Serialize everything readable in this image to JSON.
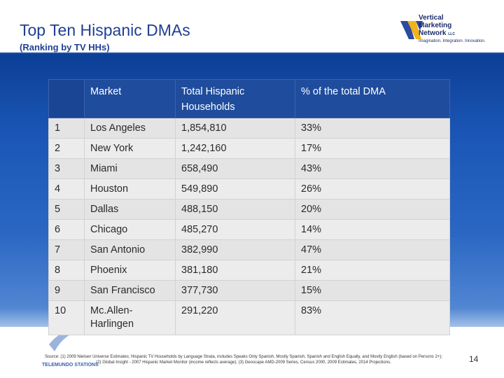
{
  "slide": {
    "title": "Top Ten Hispanic DMAs",
    "subtitle": "(Ranking by TV HHs)",
    "page_number": "14"
  },
  "logo": {
    "line1": "Vertical",
    "line2": "Marketing",
    "line3": "Network",
    "suffix": "LLC",
    "tagline": "Imagination. Integration. Innovation."
  },
  "table": {
    "headers": [
      "",
      "Market",
      "Total Hispanic Households",
      "% of the total DMA"
    ],
    "rows": [
      {
        "rank": "1",
        "market": "Los Angeles",
        "households": "1,854,810",
        "pct": "33%"
      },
      {
        "rank": "2",
        "market": "New York",
        "households": "1,242,160",
        "pct": "17%"
      },
      {
        "rank": "3",
        "market": "Miami",
        "households": "658,490",
        "pct": "43%"
      },
      {
        "rank": "4",
        "market": "Houston",
        "households": "549,890",
        "pct": "26%"
      },
      {
        "rank": "5",
        "market": "Dallas",
        "households": "488,150",
        "pct": "20%"
      },
      {
        "rank": "6",
        "market": "Chicago",
        "households": "485,270",
        "pct": "14%"
      },
      {
        "rank": "7",
        "market": "San Antonio",
        "households": "382,990",
        "pct": "47%"
      },
      {
        "rank": "8",
        "market": "Phoenix",
        "households": "381,180",
        "pct": "21%"
      },
      {
        "rank": "9",
        "market": "San Francisco",
        "households": "377,730",
        "pct": "15%"
      },
      {
        "rank": "10",
        "market": "Mc.Allen-Harlingen",
        "households": "291,220",
        "pct": "83%"
      }
    ]
  },
  "footer": {
    "source_line1": "Source: (1) 2009 Nielsen Universe Estimates; Hispanic TV Households by Language Strata, includes Speaks Only Spanish, Mostly Spanish, Spanish and English Equally, and Mostly English (based on Persons 2+);",
    "source_line2": "(2) Global Insight - 2007 Hispanic Market Monitor (income reflects average); (3) Geoscape AMD-2009 Series, Census 2000, 2009 Estimates, 2014 Projections.",
    "brand": "TELEMUNDO STATIONS"
  },
  "colors": {
    "title": "#1f3f93",
    "header_bg": "#1f4c9c",
    "band": "#1b56b6",
    "row_bg": "#e4e4e4"
  }
}
